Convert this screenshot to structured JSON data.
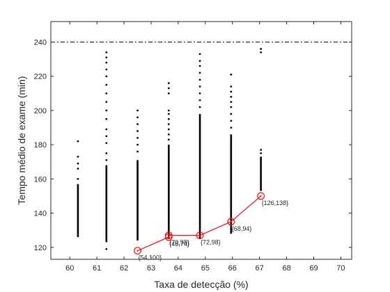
{
  "chart_data": {
    "type": "scatter",
    "title": "",
    "xlabel": "Taxa de detecção (%)",
    "ylabel": "Tempo médio de exame (min)",
    "xlim": [
      59.3,
      70.4
    ],
    "ylim": [
      113,
      252
    ],
    "x_ticks": [
      "60",
      "61",
      "62",
      "63",
      "64",
      "65",
      "66",
      "67",
      "68",
      "69",
      "70"
    ],
    "y_ticks": [
      "120",
      "140",
      "160",
      "180",
      "200",
      "220",
      "240"
    ],
    "grid": false,
    "reference_line": {
      "y": 240,
      "style": "dash-dot",
      "color": "#000000"
    },
    "scatter_series": {
      "color": "#000000",
      "columns": [
        {
          "x": 60.3,
          "dense": [
            126,
            157
          ],
          "sparse": [
            160,
            166,
            169,
            173,
            182
          ]
        },
        {
          "x": 61.35,
          "dense": [
            123,
            168
          ],
          "sparse": [
            119,
            171,
            175,
            181,
            185,
            189,
            195,
            200,
            205,
            210,
            215,
            220,
            224,
            228,
            231,
            234
          ]
        },
        {
          "x": 62.5,
          "dense": [
            124,
            171
          ],
          "sparse": [
            176,
            180,
            184,
            188,
            192,
            196,
            200
          ]
        },
        {
          "x": 63.65,
          "dense": [
            125,
            180
          ],
          "sparse": [
            183,
            186,
            189,
            192,
            195,
            198,
            200,
            210,
            213,
            216
          ]
        },
        {
          "x": 64.8,
          "dense": [
            125,
            198
          ],
          "sparse": [
            202,
            206,
            210,
            214,
            218,
            222,
            226,
            229,
            233
          ]
        },
        {
          "x": 65.95,
          "dense": [
            128,
            186
          ],
          "sparse": [
            190,
            194,
            198,
            202,
            205,
            208,
            211,
            214,
            221
          ]
        },
        {
          "x": 67.05,
          "dense": [
            153,
            173
          ],
          "sparse": [
            175,
            177,
            234,
            236
          ]
        }
      ]
    },
    "pareto_series": {
      "color": "#e8191e",
      "points": [
        {
          "x": 62.5,
          "y": 118,
          "label": "{54,100}"
        },
        {
          "x": 63.65,
          "y": 126,
          "label": "{48,74}"
        },
        {
          "x": 63.65,
          "y": 127,
          "label": "{70,98}"
        },
        {
          "x": 64.8,
          "y": 127,
          "label": "{72,98}"
        },
        {
          "x": 65.95,
          "y": 135,
          "label": "{68,94}"
        },
        {
          "x": 67.05,
          "y": 150,
          "label": "{126,138}"
        }
      ]
    }
  }
}
